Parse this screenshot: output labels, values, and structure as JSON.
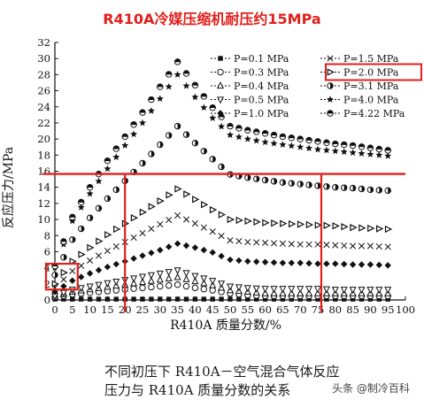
{
  "page": {
    "title": "R410A冷媒压缩机耐压约15MPa",
    "caption_line1": "不同初压下 R410A－空气混合气体反应",
    "caption_line2": "压力与 R410A 质量分数的关系",
    "watermark": "头条 @制冷百科"
  },
  "chart_data": {
    "type": "scatter",
    "xlabel": "R410A 质量分数/%",
    "ylabel": "反应压力/MPa",
    "xlim": [
      0,
      100
    ],
    "ylim": [
      0,
      32
    ],
    "x_ticks": [
      0,
      5,
      10,
      15,
      20,
      25,
      30,
      35,
      40,
      45,
      50,
      55,
      60,
      65,
      70,
      75,
      80,
      85,
      90,
      95,
      100
    ],
    "y_ticks": [
      0,
      2,
      4,
      6,
      8,
      10,
      12,
      14,
      16,
      18,
      20,
      22,
      24,
      26,
      28,
      30,
      32
    ],
    "legend_placement": "top-right",
    "series": [
      {
        "name": "P=0.1 MPa",
        "marker": "square-filled",
        "x": [
          0,
          5,
          10,
          15,
          20,
          25,
          30,
          35,
          40,
          45,
          50,
          55,
          60,
          65,
          70,
          75,
          80,
          85,
          90,
          95
        ],
        "values": [
          0.1,
          0.1,
          0.1,
          0.1,
          0.1,
          0.1,
          0.1,
          0.1,
          0.1,
          0.1,
          0.1,
          0.1,
          0.1,
          0.1,
          0.1,
          0.1,
          0.1,
          0.1,
          0.1,
          0.1
        ]
      },
      {
        "name": "P=0.3 MPa",
        "marker": "circle-open",
        "x": [
          0,
          5,
          10,
          15,
          20,
          25,
          30,
          35,
          40,
          45,
          50,
          55,
          60,
          65,
          70,
          75,
          80,
          85,
          90,
          95
        ],
        "values": [
          0.3,
          0.7,
          0.9,
          1.1,
          1.3,
          1.5,
          1.7,
          1.9,
          1.5,
          1.2,
          0.8,
          0.6,
          0.5,
          0.5,
          0.5,
          0.5,
          0.5,
          0.5,
          0.5,
          0.5
        ]
      },
      {
        "name": "P=0.4 MPa",
        "marker": "triangle-up-open",
        "x": [
          0,
          5,
          10,
          15,
          20,
          25,
          30,
          35,
          40,
          45,
          50,
          55,
          60,
          65,
          70,
          75,
          80,
          85,
          90,
          95
        ],
        "values": [
          0.4,
          1.0,
          1.3,
          1.6,
          1.9,
          2.2,
          2.5,
          2.8,
          2.3,
          1.8,
          1.2,
          1.0,
          0.8,
          0.8,
          0.8,
          0.8,
          0.8,
          0.8,
          0.8,
          0.8
        ]
      },
      {
        "name": "P=0.5 MPa",
        "marker": "triangle-down-open",
        "x": [
          0,
          5,
          10,
          15,
          20,
          25,
          30,
          35,
          40,
          45,
          50,
          55,
          60,
          65,
          70,
          75,
          80,
          85,
          90,
          95
        ],
        "values": [
          0.5,
          1.3,
          1.7,
          2.1,
          2.5,
          2.9,
          3.3,
          3.7,
          3.0,
          2.4,
          1.7,
          1.5,
          1.4,
          1.4,
          1.4,
          1.4,
          1.3,
          1.3,
          1.3,
          1.3
        ]
      },
      {
        "name": "P=1.0 MPa",
        "marker": "diamond-filled",
        "x": [
          0,
          5,
          10,
          15,
          20,
          25,
          30,
          35,
          40,
          45,
          50,
          55,
          60,
          65,
          70,
          75,
          80,
          85,
          90,
          95
        ],
        "values": [
          1.0,
          2.4,
          3.3,
          4.1,
          4.8,
          5.5,
          6.2,
          7.0,
          6.5,
          5.9,
          5.0,
          4.8,
          4.7,
          4.6,
          4.6,
          4.5,
          4.5,
          4.4,
          4.4,
          4.3
        ]
      },
      {
        "name": "P=1.5 MPa",
        "marker": "x-cross",
        "x": [
          0,
          5,
          10,
          15,
          20,
          25,
          30,
          35,
          40,
          45,
          50,
          55,
          60,
          65,
          70,
          75,
          80,
          85,
          90,
          95
        ],
        "values": [
          1.5,
          3.6,
          4.9,
          6.1,
          7.2,
          8.3,
          9.4,
          10.5,
          9.5,
          8.5,
          7.4,
          7.2,
          7.1,
          7.0,
          6.9,
          6.9,
          6.8,
          6.7,
          6.7,
          6.6
        ]
      },
      {
        "name": "P=2.0 MPa",
        "marker": "triangle-right",
        "x": [
          0,
          5,
          10,
          15,
          20,
          25,
          30,
          35,
          40,
          45,
          50,
          55,
          60,
          65,
          70,
          75,
          80,
          85,
          90,
          95
        ],
        "values": [
          2.0,
          4.8,
          6.5,
          8.1,
          9.5,
          10.9,
          12.3,
          13.8,
          12.5,
          11.2,
          10.0,
          9.8,
          9.6,
          9.5,
          9.4,
          9.3,
          9.2,
          9.0,
          8.9,
          8.8
        ]
      },
      {
        "name": "P=3.1 MPa",
        "marker": "circle-half",
        "x": [
          0,
          5,
          10,
          15,
          20,
          25,
          30,
          35,
          40,
          45,
          50,
          55,
          60,
          65,
          70,
          75,
          80,
          85,
          90,
          95
        ],
        "values": [
          3.1,
          7.5,
          10.2,
          12.6,
          14.8,
          17.0,
          19.3,
          21.6,
          19.5,
          17.5,
          15.6,
          15.2,
          14.9,
          14.6,
          14.4,
          14.2,
          14.0,
          13.9,
          13.7,
          13.6
        ]
      },
      {
        "name": "P=4.0 MPa",
        "marker": "star",
        "x": [
          0,
          5,
          10,
          15,
          20,
          25,
          30,
          35,
          40,
          45,
          50,
          55,
          60,
          65,
          70,
          75,
          80,
          85,
          90,
          95
        ],
        "values": [
          4.0,
          9.8,
          13.2,
          16.3,
          19.2,
          22.0,
          25.0,
          28.0,
          25.2,
          22.6,
          20.5,
          20.0,
          19.6,
          19.3,
          19.0,
          18.7,
          18.5,
          18.3,
          18.1,
          17.9
        ]
      },
      {
        "name": "P=4.22 MPa",
        "marker": "circle-half-filled",
        "x": [
          0,
          5,
          10,
          15,
          20,
          25,
          30,
          35,
          40,
          45,
          50,
          55,
          60,
          65,
          70,
          75,
          80,
          85,
          90,
          95
        ],
        "values": [
          4.22,
          10.3,
          14.0,
          17.3,
          20.3,
          23.3,
          26.5,
          29.6,
          26.7,
          23.9,
          21.6,
          21.1,
          20.7,
          20.3,
          20.0,
          19.7,
          19.4,
          19.2,
          18.9,
          18.6
        ]
      }
    ],
    "annotations": {
      "hline_value": 15,
      "vline_values": [
        20,
        76
      ],
      "highlight_color": "#e0201c",
      "highlight_box": {
        "x_range": [
          0,
          5
        ],
        "y_range": [
          1.3,
          4.5
        ]
      },
      "highlighted_legend": "P=2.0 MPa"
    }
  }
}
